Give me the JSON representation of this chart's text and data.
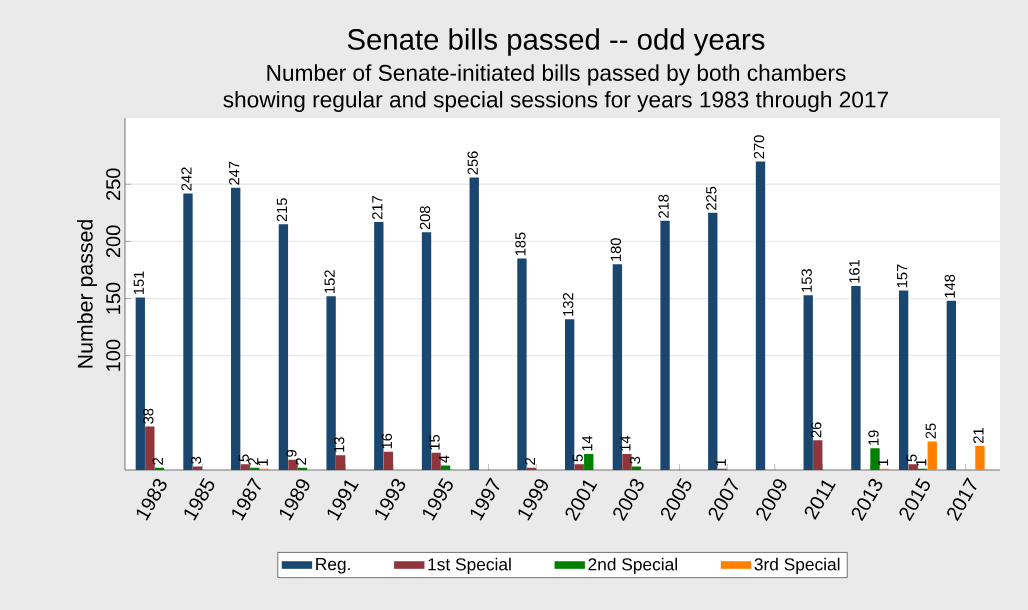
{
  "chart_data": {
    "type": "bar",
    "title": "Senate bills passed -- odd years",
    "subtitle": "Number of Senate-initiated bills passed by both chambers showing regular and special sessions for years 1983 through 2017",
    "ylabel": "Number passed",
    "categories": [
      "1983",
      "1985",
      "1987",
      "1989",
      "1991",
      "1993",
      "1995",
      "1997",
      "1999",
      "2001",
      "2003",
      "2005",
      "2007",
      "2009",
      "2011",
      "2013",
      "2015",
      "2017"
    ],
    "series": [
      {
        "name": "Reg.",
        "color": "#1a476f",
        "values": [
          151,
          242,
          247,
          215,
          152,
          217,
          208,
          256,
          185,
          132,
          180,
          218,
          225,
          270,
          153,
          161,
          157,
          148
        ]
      },
      {
        "name": "1st Special",
        "color": "#90353b",
        "values": [
          38,
          3,
          5,
          9,
          13,
          16,
          15,
          null,
          2,
          5,
          14,
          null,
          1,
          null,
          26,
          null,
          5,
          null
        ]
      },
      {
        "name": "2nd Special",
        "color": "#008000",
        "values": [
          2,
          null,
          2,
          2,
          null,
          null,
          4,
          null,
          null,
          14,
          3,
          null,
          null,
          null,
          null,
          19,
          1,
          null
        ]
      },
      {
        "name": "3rd Special",
        "color": "#ff8000",
        "values": [
          null,
          null,
          1,
          null,
          null,
          null,
          null,
          null,
          null,
          null,
          null,
          null,
          null,
          null,
          null,
          1,
          25,
          21
        ]
      }
    ],
    "ylim": [
      0,
      308
    ],
    "yticks": [
      100,
      150,
      200,
      250
    ],
    "grid": "y",
    "legend": "bottom",
    "data_labels": true
  }
}
